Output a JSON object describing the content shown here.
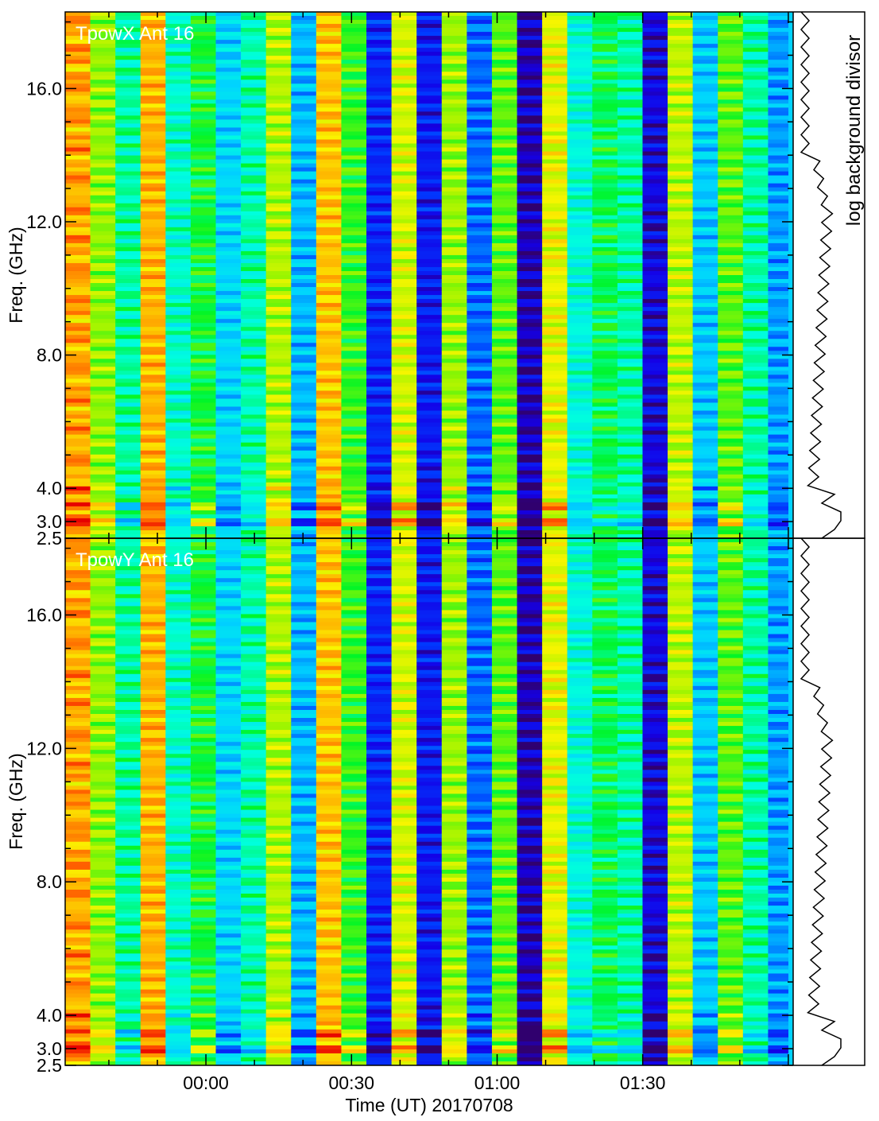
{
  "chart_data": {
    "type": "heatmap",
    "xlabel": "Time (UT) 20170708",
    "x_tick_labels": [
      "00:00",
      "00:30",
      "01:00",
      "01:30"
    ],
    "x_tick_minutes": [
      0,
      30,
      60,
      90
    ],
    "x_range_minutes": [
      -29,
      121
    ],
    "ylabel": "Freq. (GHz)",
    "y_tick_labels": [
      "16.0",
      "12.0",
      "8.0",
      "4.0",
      "3.0",
      "2.5"
    ],
    "y_tick_values": [
      16.0,
      12.0,
      8.0,
      4.0,
      3.0,
      2.5
    ],
    "ylim": [
      2.5,
      18.3
    ],
    "y_scale": "linear",
    "colormap": "rainbow",
    "column_levels": [
      0.82,
      0.62,
      0.45,
      0.8,
      0.42,
      0.52,
      0.32,
      0.44,
      0.65,
      0.28,
      0.78,
      0.55,
      0.12,
      0.68,
      0.1,
      0.63,
      0.2,
      0.58,
      0.03,
      0.7,
      0.4,
      0.5,
      0.45,
      0.06,
      0.66,
      0.3,
      0.58,
      0.45,
      0.25
    ],
    "panels": [
      {
        "title": "TpowX Ant 16"
      },
      {
        "title": "TpowY Ant 16"
      }
    ],
    "side_label": "log background divisor"
  }
}
